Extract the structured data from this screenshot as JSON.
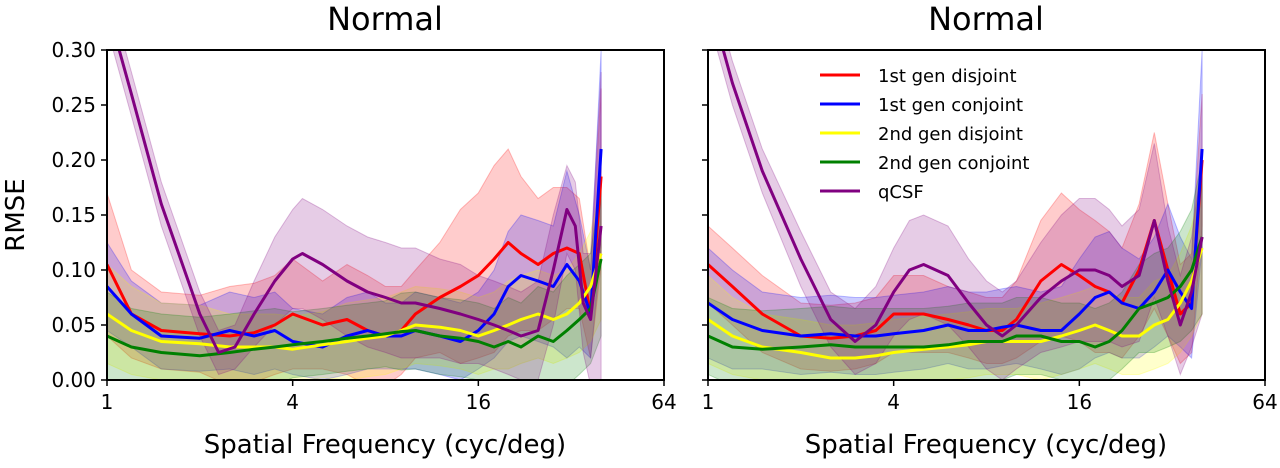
{
  "figure": {
    "ylabel": "RMSE",
    "xlabel": "Spatial Frequency (cyc/deg)"
  },
  "chart_data": [
    {
      "type": "line",
      "title": "Normal",
      "xlabel": "Spatial Frequency (cyc/deg)",
      "ylabel": "RMSE",
      "x_scale": "log2",
      "xlim": [
        1,
        64
      ],
      "ylim": [
        0,
        0.3
      ],
      "xticks": [
        "1",
        "4",
        "16",
        "64"
      ],
      "yticks": [
        "0.00",
        "0.05",
        "0.10",
        "0.15",
        "0.20",
        "0.25",
        "0.30"
      ],
      "legend": null,
      "grid": false,
      "series": [
        {
          "name": "1st gen disjoint",
          "color": "#ff0000",
          "x": [
            1,
            1.2,
            1.5,
            2,
            2.5,
            3,
            3.5,
            4,
            5,
            6,
            7,
            8,
            9,
            10,
            12,
            14,
            16,
            18,
            20,
            22,
            25,
            28,
            31,
            34,
            37,
            40
          ],
          "y": [
            0.105,
            0.06,
            0.045,
            0.042,
            0.04,
            0.043,
            0.05,
            0.06,
            0.05,
            0.055,
            0.045,
            0.04,
            0.045,
            0.06,
            0.075,
            0.085,
            0.095,
            0.11,
            0.125,
            0.115,
            0.105,
            0.115,
            0.12,
            0.115,
            0.06,
            0.185
          ],
          "band": [
            0.065,
            0.04,
            0.035,
            0.035,
            0.045,
            0.045,
            0.045,
            0.05,
            0.04,
            0.05,
            0.05,
            0.045,
            0.04,
            0.04,
            0.05,
            0.07,
            0.075,
            0.085,
            0.085,
            0.07,
            0.06,
            0.06,
            0.055,
            0.05,
            0.04,
            0.08
          ]
        },
        {
          "name": "1st gen conjoint",
          "color": "#0000ff",
          "x": [
            1,
            1.2,
            1.5,
            2,
            2.5,
            3,
            3.5,
            4,
            5,
            6,
            7,
            8,
            9,
            10,
            12,
            14,
            16,
            18,
            20,
            22,
            25,
            28,
            31,
            34,
            37,
            40
          ],
          "y": [
            0.085,
            0.06,
            0.04,
            0.038,
            0.045,
            0.04,
            0.045,
            0.035,
            0.03,
            0.04,
            0.045,
            0.04,
            0.04,
            0.045,
            0.04,
            0.035,
            0.045,
            0.06,
            0.085,
            0.095,
            0.09,
            0.085,
            0.105,
            0.09,
            0.06,
            0.21
          ],
          "band": [
            0.04,
            0.03,
            0.03,
            0.03,
            0.035,
            0.035,
            0.035,
            0.03,
            0.03,
            0.035,
            0.035,
            0.03,
            0.03,
            0.035,
            0.035,
            0.035,
            0.035,
            0.04,
            0.05,
            0.055,
            0.055,
            0.055,
            0.085,
            0.06,
            0.04,
            0.09
          ]
        },
        {
          "name": "2nd gen disjoint",
          "color": "#ffff00",
          "x": [
            1,
            1.2,
            1.5,
            2,
            2.5,
            3,
            3.5,
            4,
            5,
            6,
            7,
            8,
            9,
            10,
            12,
            14,
            16,
            18,
            20,
            22,
            25,
            28,
            31,
            34,
            37,
            40
          ],
          "y": [
            0.06,
            0.045,
            0.035,
            0.033,
            0.03,
            0.03,
            0.03,
            0.028,
            0.032,
            0.035,
            0.038,
            0.04,
            0.045,
            0.05,
            0.048,
            0.045,
            0.04,
            0.045,
            0.05,
            0.055,
            0.06,
            0.055,
            0.06,
            0.07,
            0.085,
            0.115
          ],
          "band": [
            0.045,
            0.04,
            0.035,
            0.035,
            0.03,
            0.03,
            0.03,
            0.03,
            0.03,
            0.035,
            0.035,
            0.035,
            0.035,
            0.035,
            0.035,
            0.035,
            0.035,
            0.035,
            0.04,
            0.04,
            0.04,
            0.04,
            0.04,
            0.045,
            0.05,
            0.06
          ]
        },
        {
          "name": "2nd gen conjoint",
          "color": "#008000",
          "x": [
            1,
            1.2,
            1.5,
            2,
            2.5,
            3,
            3.5,
            4,
            5,
            6,
            7,
            8,
            9,
            10,
            12,
            14,
            16,
            18,
            20,
            22,
            25,
            28,
            31,
            34,
            37,
            40
          ],
          "y": [
            0.04,
            0.03,
            0.025,
            0.022,
            0.025,
            0.028,
            0.03,
            0.032,
            0.035,
            0.038,
            0.04,
            0.042,
            0.044,
            0.045,
            0.04,
            0.038,
            0.035,
            0.03,
            0.035,
            0.03,
            0.04,
            0.035,
            0.045,
            0.055,
            0.065,
            0.11
          ],
          "band": [
            0.04,
            0.035,
            0.035,
            0.035,
            0.035,
            0.035,
            0.035,
            0.03,
            0.03,
            0.03,
            0.03,
            0.03,
            0.035,
            0.035,
            0.035,
            0.035,
            0.035,
            0.035,
            0.04,
            0.04,
            0.045,
            0.045,
            0.05,
            0.05,
            0.05,
            0.07
          ]
        },
        {
          "name": "qCSF",
          "color": "#800080",
          "x": [
            1,
            1.2,
            1.5,
            2,
            2.3,
            2.6,
            3,
            3.5,
            4,
            4.3,
            5,
            6,
            7,
            8,
            9,
            10,
            12,
            14,
            16,
            18,
            20,
            22,
            25,
            28,
            31,
            33,
            35,
            37,
            40
          ],
          "y": [
            0.34,
            0.26,
            0.16,
            0.06,
            0.025,
            0.03,
            0.06,
            0.09,
            0.11,
            0.115,
            0.105,
            0.09,
            0.08,
            0.075,
            0.07,
            0.07,
            0.065,
            0.06,
            0.055,
            0.05,
            0.045,
            0.04,
            0.045,
            0.1,
            0.155,
            0.14,
            0.07,
            0.055,
            0.14
          ],
          "band": [
            0.02,
            0.02,
            0.02,
            0.02,
            0.02,
            0.02,
            0.03,
            0.04,
            0.045,
            0.05,
            0.05,
            0.05,
            0.05,
            0.05,
            0.05,
            0.05,
            0.045,
            0.045,
            0.04,
            0.04,
            0.04,
            0.04,
            0.045,
            0.05,
            0.04,
            0.04,
            0.045,
            0.06,
            0.14
          ]
        }
      ]
    },
    {
      "type": "line",
      "title": "Normal",
      "xlabel": "Spatial Frequency (cyc/deg)",
      "ylabel": "",
      "x_scale": "log2",
      "xlim": [
        1,
        64
      ],
      "ylim": [
        0,
        0.3
      ],
      "xticks": [
        "1",
        "4",
        "16",
        "64"
      ],
      "yticks": [],
      "legend": "top-center",
      "grid": false,
      "series": [
        {
          "name": "1st gen disjoint",
          "color": "#ff0000",
          "x": [
            1,
            1.2,
            1.5,
            2,
            2.5,
            3,
            3.5,
            4,
            5,
            6,
            7,
            8,
            9,
            10,
            12,
            14,
            16,
            18,
            20,
            22,
            25,
            28,
            31,
            34,
            37,
            40
          ],
          "y": [
            0.105,
            0.085,
            0.06,
            0.04,
            0.038,
            0.04,
            0.045,
            0.06,
            0.06,
            0.055,
            0.05,
            0.045,
            0.045,
            0.055,
            0.09,
            0.105,
            0.095,
            0.085,
            0.08,
            0.07,
            0.1,
            0.145,
            0.1,
            0.06,
            0.07,
            0.2
          ],
          "band": [
            0.035,
            0.035,
            0.035,
            0.03,
            0.03,
            0.03,
            0.03,
            0.035,
            0.035,
            0.03,
            0.03,
            0.03,
            0.03,
            0.035,
            0.055,
            0.065,
            0.06,
            0.06,
            0.055,
            0.05,
            0.06,
            0.08,
            0.06,
            0.045,
            0.045,
            0.06
          ]
        },
        {
          "name": "1st gen conjoint",
          "color": "#0000ff",
          "x": [
            1,
            1.2,
            1.5,
            2,
            2.5,
            3,
            3.5,
            4,
            5,
            6,
            7,
            8,
            9,
            10,
            12,
            14,
            16,
            18,
            20,
            22,
            25,
            28,
            31,
            34,
            37,
            40
          ],
          "y": [
            0.07,
            0.055,
            0.045,
            0.04,
            0.042,
            0.04,
            0.04,
            0.042,
            0.045,
            0.05,
            0.045,
            0.045,
            0.048,
            0.05,
            0.045,
            0.045,
            0.06,
            0.075,
            0.08,
            0.07,
            0.065,
            0.08,
            0.1,
            0.08,
            0.065,
            0.21
          ],
          "band": [
            0.05,
            0.045,
            0.035,
            0.035,
            0.035,
            0.035,
            0.035,
            0.035,
            0.035,
            0.035,
            0.035,
            0.035,
            0.035,
            0.035,
            0.035,
            0.04,
            0.05,
            0.055,
            0.055,
            0.05,
            0.045,
            0.05,
            0.06,
            0.05,
            0.045,
            0.09
          ]
        },
        {
          "name": "2nd gen disjoint",
          "color": "#ffff00",
          "x": [
            1,
            1.2,
            1.5,
            2,
            2.5,
            3,
            3.5,
            4,
            5,
            6,
            7,
            8,
            9,
            10,
            12,
            14,
            16,
            18,
            20,
            22,
            25,
            28,
            31,
            34,
            37,
            40
          ],
          "y": [
            0.055,
            0.04,
            0.03,
            0.025,
            0.02,
            0.02,
            0.022,
            0.025,
            0.028,
            0.03,
            0.032,
            0.035,
            0.035,
            0.035,
            0.035,
            0.04,
            0.045,
            0.05,
            0.045,
            0.04,
            0.04,
            0.05,
            0.055,
            0.07,
            0.09,
            0.12
          ],
          "band": [
            0.04,
            0.035,
            0.03,
            0.03,
            0.03,
            0.03,
            0.03,
            0.03,
            0.03,
            0.03,
            0.03,
            0.03,
            0.03,
            0.03,
            0.035,
            0.035,
            0.035,
            0.035,
            0.035,
            0.035,
            0.035,
            0.04,
            0.04,
            0.045,
            0.05,
            0.06
          ]
        },
        {
          "name": "2nd gen conjoint",
          "color": "#008000",
          "x": [
            1,
            1.2,
            1.5,
            2,
            2.5,
            3,
            3.5,
            4,
            5,
            6,
            7,
            8,
            9,
            10,
            12,
            14,
            16,
            18,
            20,
            22,
            25,
            28,
            31,
            34,
            37,
            40
          ],
          "y": [
            0.04,
            0.03,
            0.028,
            0.03,
            0.032,
            0.03,
            0.03,
            0.03,
            0.03,
            0.032,
            0.035,
            0.035,
            0.035,
            0.04,
            0.04,
            0.035,
            0.035,
            0.03,
            0.035,
            0.045,
            0.065,
            0.07,
            0.075,
            0.085,
            0.1,
            0.13
          ],
          "band": [
            0.035,
            0.035,
            0.035,
            0.035,
            0.035,
            0.035,
            0.035,
            0.035,
            0.035,
            0.035,
            0.035,
            0.035,
            0.035,
            0.035,
            0.035,
            0.035,
            0.035,
            0.035,
            0.035,
            0.035,
            0.04,
            0.045,
            0.045,
            0.05,
            0.055,
            0.07
          ]
        },
        {
          "name": "qCSF",
          "color": "#800080",
          "x": [
            1,
            1.2,
            1.5,
            2,
            2.5,
            3,
            3.5,
            4,
            4.5,
            5,
            6,
            7,
            8,
            9,
            10,
            12,
            14,
            16,
            18,
            20,
            22,
            25,
            28,
            31,
            34,
            37,
            40
          ],
          "y": [
            0.35,
            0.27,
            0.19,
            0.11,
            0.055,
            0.035,
            0.05,
            0.08,
            0.1,
            0.105,
            0.095,
            0.07,
            0.05,
            0.04,
            0.05,
            0.075,
            0.09,
            0.1,
            0.1,
            0.095,
            0.085,
            0.095,
            0.145,
            0.09,
            0.05,
            0.08,
            0.13
          ],
          "band": [
            0.02,
            0.02,
            0.02,
            0.025,
            0.025,
            0.03,
            0.035,
            0.04,
            0.045,
            0.045,
            0.045,
            0.04,
            0.04,
            0.04,
            0.04,
            0.05,
            0.06,
            0.065,
            0.065,
            0.06,
            0.055,
            0.06,
            0.07,
            0.05,
            0.045,
            0.05,
            0.07
          ]
        }
      ]
    }
  ]
}
